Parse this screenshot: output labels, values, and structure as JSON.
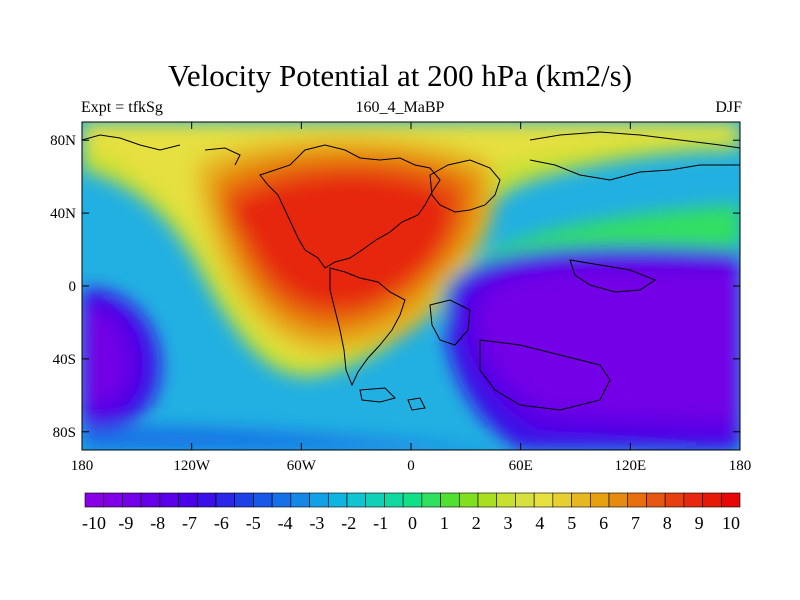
{
  "title": "Velocity Potential at 200 hPa (km2/s)",
  "subtitle_left": "Expt = tfkSg",
  "subtitle_center": "160_4_MaBP",
  "subtitle_right": "DJF",
  "map": {
    "projection": "cylindrical equidistant",
    "lon_range": [
      -180,
      180
    ],
    "lat_range": [
      -90,
      90
    ],
    "lon_ticks": [
      {
        "value": -180,
        "label": "180"
      },
      {
        "value": -120,
        "label": "120W"
      },
      {
        "value": -60,
        "label": "60W"
      },
      {
        "value": 0,
        "label": "0"
      },
      {
        "value": 60,
        "label": "60E"
      },
      {
        "value": 120,
        "label": "120E"
      },
      {
        "value": 180,
        "label": "180"
      }
    ],
    "lat_ticks": [
      {
        "value": 80,
        "label": "80N"
      },
      {
        "value": 40,
        "label": "40N"
      },
      {
        "value": 0,
        "label": "0"
      },
      {
        "value": -40,
        "label": "40S"
      },
      {
        "value": -80,
        "label": "80S"
      }
    ]
  },
  "field_features": [
    {
      "type": "maximum",
      "lon": -45,
      "lat": 30,
      "value": 10
    },
    {
      "type": "minimum",
      "lon": 105,
      "lat": -20,
      "value": -10
    },
    {
      "type": "minimum",
      "lon": -175,
      "lat": -30,
      "value": -9
    }
  ],
  "colorbar": {
    "colors": [
      "#8a00e6",
      "#7f00e6",
      "#7300e6",
      "#6600e6",
      "#5a00e6",
      "#4b00e6",
      "#3a10e6",
      "#2a28e6",
      "#1e40e6",
      "#1858e6",
      "#1670e6",
      "#1588e6",
      "#12a0e6",
      "#10b4e0",
      "#10c4d0",
      "#10d0b8",
      "#10d8a0",
      "#10e088",
      "#30e060",
      "#50e030",
      "#80e020",
      "#a8e020",
      "#c8e030",
      "#d8e040",
      "#e6e040",
      "#e6d030",
      "#e6b820",
      "#e6a010",
      "#e68a10",
      "#e67010",
      "#e65810",
      "#e64010",
      "#e62810",
      "#e61808",
      "#e60808"
    ],
    "labels": [
      "-10",
      "-9",
      "-8",
      "-7",
      "-6",
      "-5",
      "-4",
      "-3",
      "-2",
      "-1",
      "0",
      "1",
      "2",
      "3",
      "4",
      "5",
      "6",
      "7",
      "8",
      "9",
      "10"
    ]
  }
}
